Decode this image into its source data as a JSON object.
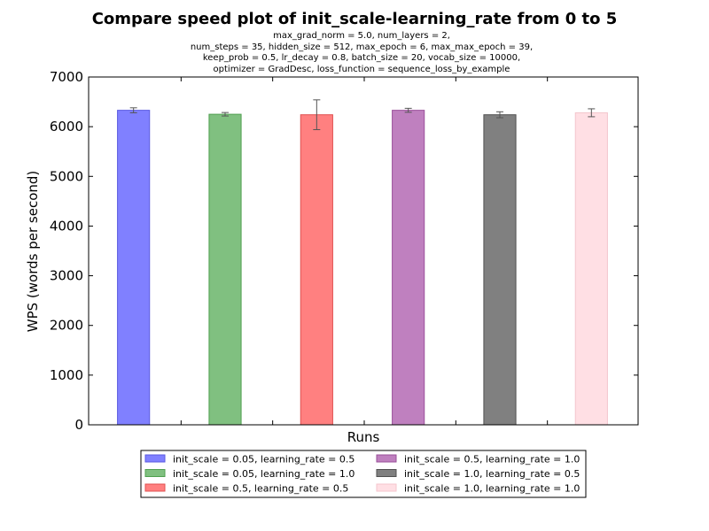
{
  "chart_data": {
    "type": "bar",
    "title": "Compare speed plot of init_scale-learning_rate from 0 to 5",
    "subtitle_lines": [
      "max_grad_norm = 5.0, num_layers = 2,",
      "num_steps = 35, hidden_size = 512, max_epoch = 6, max_max_epoch = 39,",
      "keep_prob = 0.5, lr_decay = 0.8, batch_size = 20, vocab_size = 10000,",
      "optimizer = GradDesc, loss_function = sequence_loss_by_example"
    ],
    "xlabel": "Runs",
    "ylabel": "WPS (words per second)",
    "ylim": [
      0,
      7000
    ],
    "yticks": [
      "0",
      "1000",
      "2000",
      "3000",
      "4000",
      "5000",
      "6000",
      "7000"
    ],
    "grid": false,
    "legend_position": "below",
    "series": [
      {
        "name": "init_scale = 0.05, learning_rate = 0.5",
        "value": 6330,
        "error": 50,
        "color": "#8080ff",
        "edge": "#5a5ae0"
      },
      {
        "name": "init_scale = 0.05, learning_rate = 1.0",
        "value": 6250,
        "error": 35,
        "color": "#80c080",
        "edge": "#50a050"
      },
      {
        "name": "init_scale = 0.5, learning_rate = 0.5",
        "value": 6240,
        "error": 300,
        "color": "#ff8080",
        "edge": "#e05050"
      },
      {
        "name": "init_scale = 0.5, learning_rate = 1.0",
        "value": 6330,
        "error": 40,
        "color": "#bf80bf",
        "edge": "#9a509a"
      },
      {
        "name": "init_scale = 1.0, learning_rate = 0.5",
        "value": 6240,
        "error": 60,
        "color": "#808080",
        "edge": "#505050"
      },
      {
        "name": "init_scale = 1.0, learning_rate = 1.0",
        "value": 6280,
        "error": 80,
        "color": "#ffdfe4",
        "edge": "#f4c6cd"
      }
    ]
  }
}
